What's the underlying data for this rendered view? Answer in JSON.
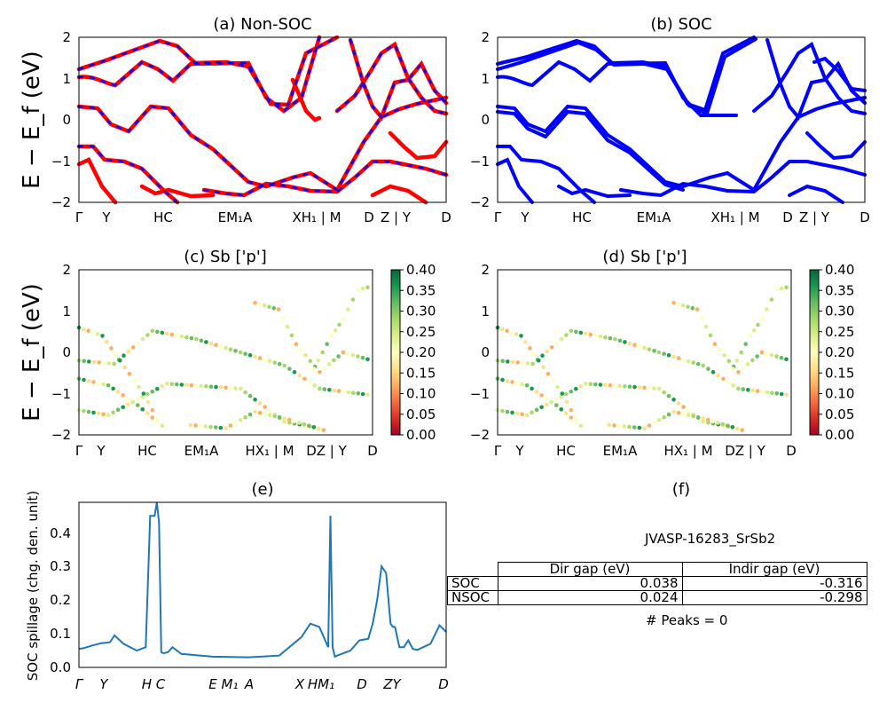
{
  "panels": {
    "a": {
      "title": "(a) Non-SOC"
    },
    "b": {
      "title": "(b) SOC"
    },
    "c": {
      "title": "(c)  Sb ['p']"
    },
    "d": {
      "title": "(d) Sb ['p']"
    },
    "e": {
      "title": "(e)"
    },
    "f": {
      "title": "(f)"
    }
  },
  "axes": {
    "band_ylabel": "E − E_f (eV)",
    "band_yticks": [
      "2",
      "1",
      "0",
      "−1",
      "−2"
    ],
    "band_xticks_ab": [
      "Γ",
      "Y",
      "HC",
      "EM₁A",
      "XH₁ | M",
      "D",
      "Z | Y",
      "D"
    ],
    "band_xticks_cd": [
      "Γ",
      "Y",
      "HC",
      "EM₁A",
      "HX₁ | M",
      "DZ | Y",
      "D"
    ],
    "spillage_ylabel": "SOC spillage (chg. den. unit)",
    "spillage_yticks": [
      "0.4",
      "0.3",
      "0.2",
      "0.1",
      "0.0"
    ],
    "spillage_xticks": [
      "Γ",
      "Y",
      "H C",
      "E",
      "M₁",
      "A",
      "X",
      "HM₁",
      "D",
      "ZY",
      "D"
    ]
  },
  "colorbars": {
    "c": {
      "ticks": [
        "0.40",
        "0.35",
        "0.30",
        "0.25",
        "0.20",
        "0.15",
        "0.10",
        "0.05",
        "0.00"
      ]
    },
    "d": {
      "ticks": [
        "0.40",
        "0.35",
        "0.30",
        "0.25",
        "0.20",
        "0.15",
        "0.10",
        "0.05",
        "0.00"
      ]
    }
  },
  "colors": {
    "nonsoc_line": "#ff0000",
    "nonsoc_dash": "#0000ff",
    "soc_line": "#0000ff",
    "spillage_line": "#1f77b4"
  },
  "gap_table": {
    "title": "JVASP-16283_SrSb2",
    "headers": [
      "",
      "Dir gap (eV)",
      "Indir gap (eV)"
    ],
    "rows": [
      {
        "label": "SOC",
        "dir": "0.038",
        "indir": "-0.316"
      },
      {
        "label": "NSOC",
        "dir": "0.024",
        "indir": "-0.298"
      }
    ],
    "peaks": "# Peaks = 0"
  },
  "chart_data": [
    {
      "type": "line",
      "title": "(a) Non-SOC",
      "ylabel": "E − E_f (eV)",
      "ylim": [
        -2,
        2
      ]
    },
    {
      "type": "line",
      "title": "(b) SOC",
      "ylim": [
        -2,
        2
      ]
    },
    {
      "type": "scatter",
      "title": "(c)  Sb ['p']",
      "ylabel": "E − E_f (eV)",
      "ylim": [
        -2,
        2
      ],
      "colorbar_range": [
        0.0,
        0.42
      ]
    },
    {
      "type": "scatter",
      "title": "(d) Sb ['p']",
      "ylim": [
        -2,
        2
      ],
      "colorbar_range": [
        0.0,
        0.4
      ]
    },
    {
      "type": "line",
      "title": "(e)",
      "ylabel": "SOC spillage (chg. den. unit)",
      "ylim": [
        0,
        0.49
      ],
      "x": [
        0,
        1,
        3,
        5,
        6,
        7,
        8,
        10,
        13,
        15,
        16,
        17,
        17.5,
        18,
        18.5,
        19,
        20,
        21,
        22,
        23,
        30,
        38,
        45,
        50,
        52,
        54,
        55,
        56,
        56.5,
        57,
        57.5,
        58,
        59,
        61,
        63,
        65,
        66,
        67,
        68,
        69,
        70,
        70.5,
        71,
        72,
        73,
        74,
        75,
        76,
        79,
        81,
        82.5
      ],
      "values": [
        0.055,
        0.057,
        0.065,
        0.072,
        0.073,
        0.075,
        0.095,
        0.07,
        0.05,
        0.06,
        0.45,
        0.45,
        0.49,
        0.43,
        0.045,
        0.042,
        0.045,
        0.06,
        0.05,
        0.04,
        0.032,
        0.03,
        0.035,
        0.09,
        0.13,
        0.12,
        0.09,
        0.06,
        0.45,
        0.06,
        0.032,
        0.035,
        0.04,
        0.05,
        0.08,
        0.085,
        0.13,
        0.2,
        0.3,
        0.28,
        0.13,
        0.12,
        0.12,
        0.06,
        0.06,
        0.08,
        0.055,
        0.052,
        0.07,
        0.125,
        0.105
      ]
    }
  ]
}
